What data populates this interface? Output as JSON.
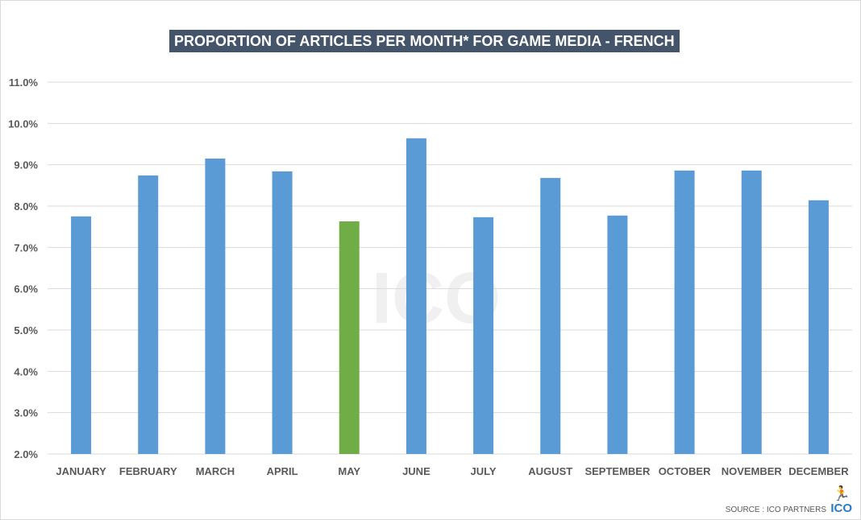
{
  "chart_data": {
    "type": "bar",
    "title": "PROPORTION OF ARTICLES PER MONTH* FOR GAME MEDIA - FRENCH",
    "categories": [
      "JANUARY",
      "FEBRUARY",
      "MARCH",
      "APRIL",
      "MAY",
      "JUNE",
      "JULY",
      "AUGUST",
      "SEPTEMBER",
      "OCTOBER",
      "NOVEMBER",
      "DECEMBER"
    ],
    "values": [
      7.75,
      8.74,
      9.15,
      8.84,
      7.63,
      9.64,
      7.73,
      8.68,
      7.77,
      8.86,
      8.86,
      8.14
    ],
    "ylim": [
      2.0,
      11.0
    ],
    "yticks": [
      "2.0%",
      "3.0%",
      "4.0%",
      "5.0%",
      "6.0%",
      "7.0%",
      "8.0%",
      "9.0%",
      "10.0%",
      "11.0%"
    ],
    "grid": true,
    "colors": {
      "default": "#5b9bd5",
      "highlight": "#70ad47",
      "highlight_category": "MAY"
    },
    "watermark": "ICO PARTNERS"
  },
  "footer": {
    "source": "SOURCE : ICO PARTNERS",
    "logo": "ICO",
    "logo_icon": "running-man-icon"
  }
}
